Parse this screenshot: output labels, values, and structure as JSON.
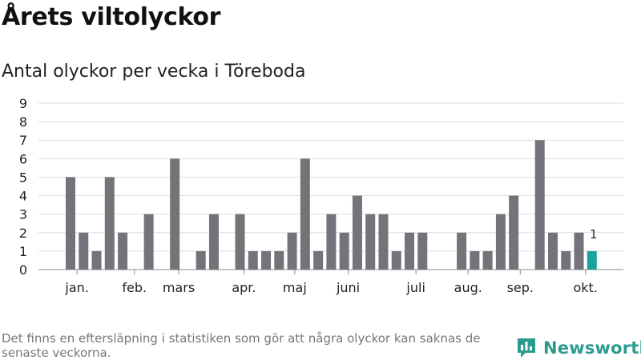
{
  "title": "Årets viltolyckor",
  "subtitle": "Antal olyckor per vecka i Töreboda",
  "footnote": "Det finns en eftersläpning i statistiken som gör att några olyckor kan saknas de senaste veckorna.",
  "brand": {
    "name": "Newsworthy",
    "icon": "bar-chart-logo-icon"
  },
  "colors": {
    "bar": "#747379",
    "highlight": "#1aa39a",
    "grid": "#dddddd",
    "brand": "#2b9b8e"
  },
  "chart_data": {
    "type": "bar",
    "x_unit": "week",
    "weeks": [
      1,
      2,
      3,
      4,
      5,
      6,
      7,
      8,
      9,
      10,
      11,
      12,
      13,
      14,
      15,
      16,
      17,
      18,
      19,
      20,
      21,
      22,
      23,
      24,
      25,
      26,
      27,
      28,
      29,
      30,
      31,
      32,
      33,
      34,
      35,
      36,
      37,
      38,
      39,
      40,
      41,
      42
    ],
    "values": [
      5,
      2,
      1,
      5,
      2,
      0,
      3,
      0,
      6,
      0,
      1,
      3,
      0,
      3,
      1,
      1,
      1,
      2,
      6,
      1,
      3,
      2,
      4,
      3,
      3,
      1,
      2,
      2,
      0,
      0,
      2,
      1,
      1,
      3,
      4,
      0,
      7,
      2,
      1,
      2,
      1,
      0
    ],
    "highlight_week": 41,
    "highlight_label": "1",
    "ylim": [
      0,
      9
    ],
    "y_ticks": [
      "0",
      "1",
      "2",
      "3",
      "4",
      "5",
      "6",
      "7",
      "8",
      "9"
    ],
    "month_labels": [
      {
        "label": "jan.",
        "week": 1.5
      },
      {
        "label": "feb.",
        "week": 5.9
      },
      {
        "label": "mars",
        "week": 9.3
      },
      {
        "label": "apr.",
        "week": 14.3
      },
      {
        "label": "maj",
        "week": 18.2
      },
      {
        "label": "juni",
        "week": 22.3
      },
      {
        "label": "juli",
        "week": 27.5
      },
      {
        "label": "aug.",
        "week": 31.5
      },
      {
        "label": "sep.",
        "week": 35.5
      },
      {
        "label": "okt.",
        "week": 40.5
      }
    ],
    "grid": true
  }
}
